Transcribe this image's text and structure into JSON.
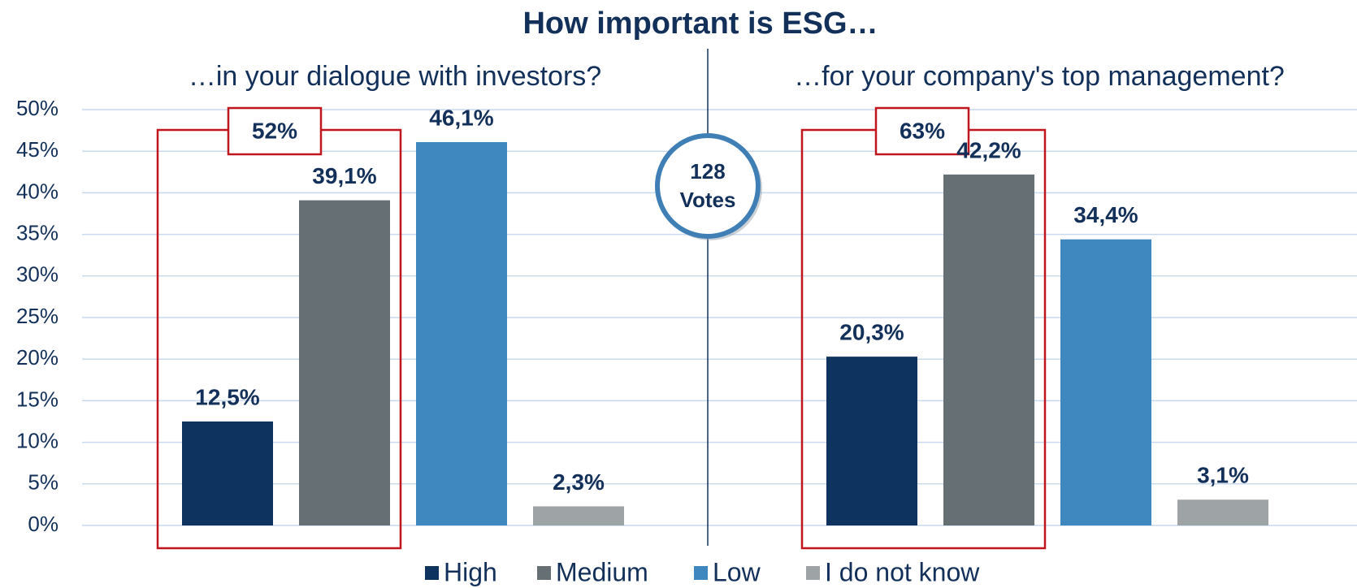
{
  "chart_data": {
    "type": "bar",
    "title": "How important is ESG…",
    "categories": [
      "…in your dialogue with investors?",
      "…for your company's top management?"
    ],
    "series": [
      {
        "name": "High",
        "color": "#0f335f",
        "values": [
          12.5,
          20.3
        ],
        "value_labels": [
          "12,5%",
          "20,3%"
        ]
      },
      {
        "name": "Medium",
        "color": "#667074",
        "values": [
          39.1,
          42.2
        ],
        "value_labels": [
          "39,1%",
          "42,2%"
        ]
      },
      {
        "name": "Low",
        "color": "#3f88bf",
        "values": [
          46.1,
          34.4
        ],
        "value_labels": [
          "46,1%",
          "34,4%"
        ]
      },
      {
        "name": "I do not know",
        "color": "#9ea3a5",
        "values": [
          2.3,
          3.1
        ],
        "value_labels": [
          "2,3%",
          "3,1%"
        ]
      }
    ],
    "ylim": [
      0,
      50
    ],
    "yticks": [
      {
        "value": 0,
        "label": "0%"
      },
      {
        "value": 5,
        "label": "5%"
      },
      {
        "value": 10,
        "label": "10%"
      },
      {
        "value": 15,
        "label": "15%"
      },
      {
        "value": 20,
        "label": "20%"
      },
      {
        "value": 25,
        "label": "25%"
      },
      {
        "value": 30,
        "label": "30%"
      },
      {
        "value": 35,
        "label": "35%"
      },
      {
        "value": 40,
        "label": "40%"
      },
      {
        "value": 45,
        "label": "45%"
      },
      {
        "value": 50,
        "label": "50%"
      }
    ],
    "grid": true,
    "legend": "bottom",
    "annotations": [
      "52%",
      "63%"
    ],
    "badge": [
      "128",
      "Votes"
    ]
  }
}
